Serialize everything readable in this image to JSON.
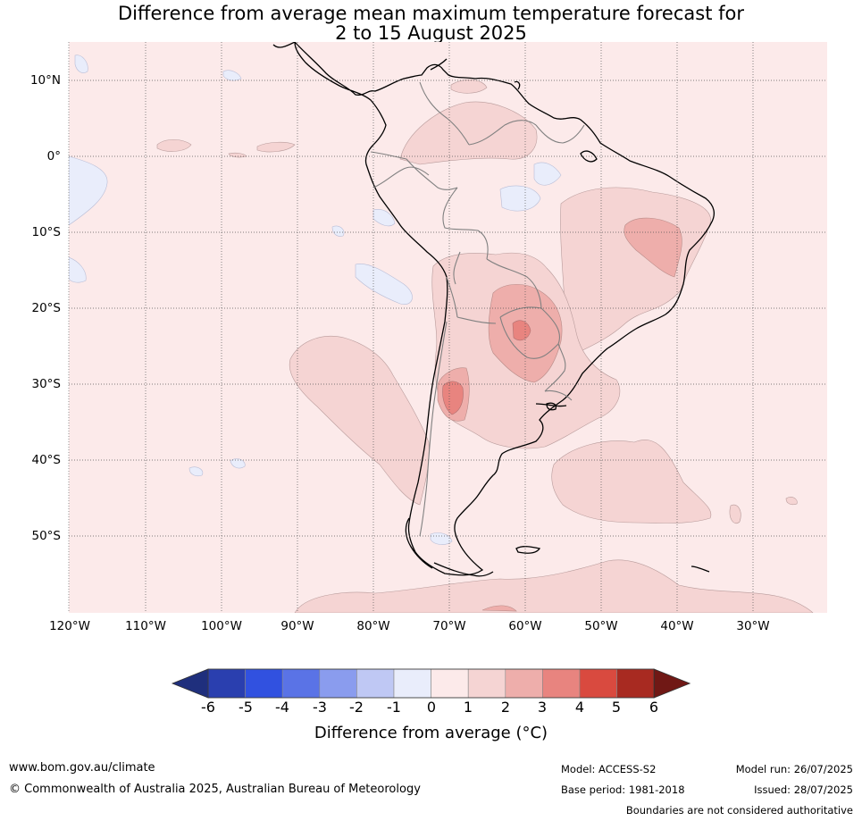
{
  "title_line1": "Difference from average mean maximum temperature forecast for",
  "title_line2": "2 to 15 August 2025",
  "lat_labels": [
    "10°N",
    "0°",
    "10°S",
    "20°S",
    "30°S",
    "40°S",
    "50°S"
  ],
  "lon_labels": [
    "120°W",
    "110°W",
    "100°W",
    "90°W",
    "80°W",
    "70°W",
    "60°W",
    "50°W",
    "40°W",
    "30°W"
  ],
  "colorbar": {
    "ticks": [
      "-6",
      "-5",
      "-4",
      "-3",
      "-2",
      "-1",
      "0",
      "1",
      "2",
      "3",
      "4",
      "5",
      "6"
    ],
    "colors": [
      "#1f2f7d",
      "#2a3faf",
      "#3151e0",
      "#5a73e6",
      "#8a9cee",
      "#bfc8f4",
      "#e9edfb",
      "#fceaea",
      "#f5d4d3",
      "#eeaeab",
      "#e8847f",
      "#d94a3f",
      "#a82a21",
      "#701815"
    ],
    "label": "Difference from average ($^\\circ$C)",
    "label_display": "Difference from average (°C)"
  },
  "legend_colors": {
    "background": "#fceaea",
    "warm_1_2": "#f5d4d3",
    "warm_2_3": "#eeaeab",
    "warm_3_4": "#e8847f",
    "cool_0_1": "#e9edfb"
  },
  "footer": {
    "website": "www.bom.gov.au/climate",
    "copyright": "© Commonwealth of Australia 2025, Australian Bureau of Meteorology",
    "model": "Model: ACCESS-S2",
    "base_period": "Base period: 1981-2018",
    "model_run": "Model run: 26/07/2025",
    "issued": "Issued: 28/07/2025",
    "disclaimer": "Boundaries are not considered authoritative"
  }
}
